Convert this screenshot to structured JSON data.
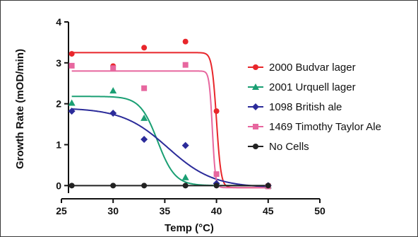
{
  "chart_data": {
    "type": "scatter",
    "xlabel": "Temp (°C)",
    "ylabel": "Growth Rate (mOD/min)",
    "xlim": [
      25,
      50
    ],
    "ylim": [
      -0.15,
      4
    ],
    "xticks": [
      25,
      30,
      35,
      40,
      45,
      50
    ],
    "yticks": [
      0,
      1,
      2,
      3,
      4
    ],
    "legend_position": "right",
    "grid": false,
    "series": [
      {
        "name": "2000 Budvar lager",
        "color": "#e8262b",
        "marker": "circle",
        "points": [
          [
            26,
            3.22
          ],
          [
            30,
            2.92
          ],
          [
            33,
            3.37
          ],
          [
            37,
            3.52
          ],
          [
            40,
            1.82
          ],
          [
            45,
            0.0
          ]
        ],
        "fit": {
          "kind": "sigmoid",
          "top": 3.25,
          "bottom": -0.05,
          "mid": 40.0,
          "slope": 0.22
        }
      },
      {
        "name": "2001 Urquell lager",
        "color": "#1a9f73",
        "marker": "triangle",
        "points": [
          [
            26,
            2.02
          ],
          [
            30,
            2.32
          ],
          [
            33,
            1.65
          ],
          [
            37,
            0.2
          ],
          [
            40,
            0.05
          ],
          [
            45,
            0.0
          ]
        ],
        "fit": {
          "kind": "sigmoid",
          "top": 2.18,
          "bottom": 0.0,
          "mid": 34.3,
          "slope": 0.85
        }
      },
      {
        "name": "1098 British ale",
        "color": "#2b2b9a",
        "marker": "diamond",
        "points": [
          [
            26,
            1.82
          ],
          [
            30,
            1.77
          ],
          [
            33,
            1.13
          ],
          [
            37,
            0.98
          ],
          [
            40,
            0.05
          ],
          [
            45,
            0.0
          ]
        ],
        "fit": {
          "kind": "sigmoid",
          "top": 1.9,
          "bottom": -0.05,
          "mid": 35.3,
          "slope": 2.2
        }
      },
      {
        "name": "1469 Timothy Taylor Ale",
        "color": "#e7679f",
        "marker": "square",
        "points": [
          [
            26,
            2.93
          ],
          [
            30,
            2.87
          ],
          [
            33,
            2.38
          ],
          [
            37,
            2.95
          ],
          [
            40,
            0.28
          ],
          [
            45,
            -0.02
          ]
        ],
        "fit": {
          "kind": "sigmoid",
          "top": 2.8,
          "bottom": -0.05,
          "mid": 39.6,
          "slope": 0.15
        }
      },
      {
        "name": "No Cells",
        "color": "#222222",
        "marker": "circle",
        "points": [
          [
            26,
            0.0
          ],
          [
            30,
            0.0
          ],
          [
            33,
            0.0
          ],
          [
            37,
            0.0
          ],
          [
            40,
            0.0
          ],
          [
            45,
            0.0
          ]
        ],
        "fit": {
          "kind": "flat",
          "value": 0.0
        }
      }
    ]
  }
}
